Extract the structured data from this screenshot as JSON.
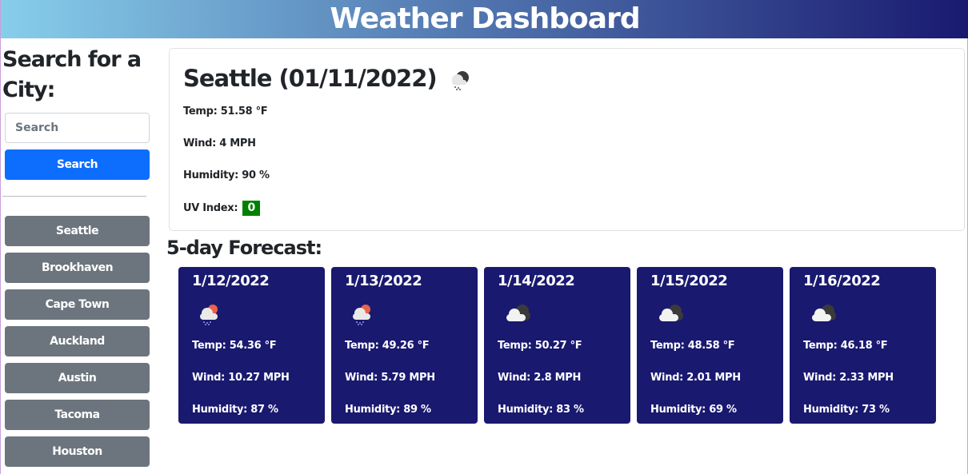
{
  "header": {
    "title": "Weather Dashboard",
    "colors": {
      "gradient_start": "#87ceeb",
      "gradient_end": "#191970"
    }
  },
  "sidebar": {
    "title": "Search for a City:",
    "search_placeholder": "Search",
    "search_value": "",
    "search_button": "Search",
    "history": [
      "Seattle",
      "Brookhaven",
      "Cape Town",
      "Auckland",
      "Austin",
      "Tacoma",
      "Houston"
    ]
  },
  "current": {
    "title": "Seattle (01/11/2022)",
    "icon": "rain-cloud-icon",
    "temp": "Temp: 51.58 °F",
    "wind": "Wind: 4 MPH",
    "humidity": "Humidity: 90 %",
    "uv_label": "UV Index:",
    "uv_value": "0",
    "uv_color": "#008000"
  },
  "forecast": {
    "title": "5-day Forecast:",
    "days": [
      {
        "date": "1/12/2022",
        "icon": "sun-rain-cloud-icon",
        "temp": "Temp: 54.36 °F",
        "wind": "Wind: 10.27 MPH",
        "humidity": "Humidity: 87 %"
      },
      {
        "date": "1/13/2022",
        "icon": "sun-rain-cloud-icon",
        "temp": "Temp: 49.26 °F",
        "wind": "Wind: 5.79 MPH",
        "humidity": "Humidity: 89 %"
      },
      {
        "date": "1/14/2022",
        "icon": "cloudy-icon",
        "temp": "Temp: 50.27 °F",
        "wind": "Wind: 2.8 MPH",
        "humidity": "Humidity: 83 %"
      },
      {
        "date": "1/15/2022",
        "icon": "cloudy-icon",
        "temp": "Temp: 48.58 °F",
        "wind": "Wind: 2.01 MPH",
        "humidity": "Humidity: 69 %"
      },
      {
        "date": "1/16/2022",
        "icon": "cloudy-icon",
        "temp": "Temp: 46.18 °F",
        "wind": "Wind: 2.33 MPH",
        "humidity": "Humidity: 73 %"
      }
    ],
    "card_color": "#191970"
  }
}
